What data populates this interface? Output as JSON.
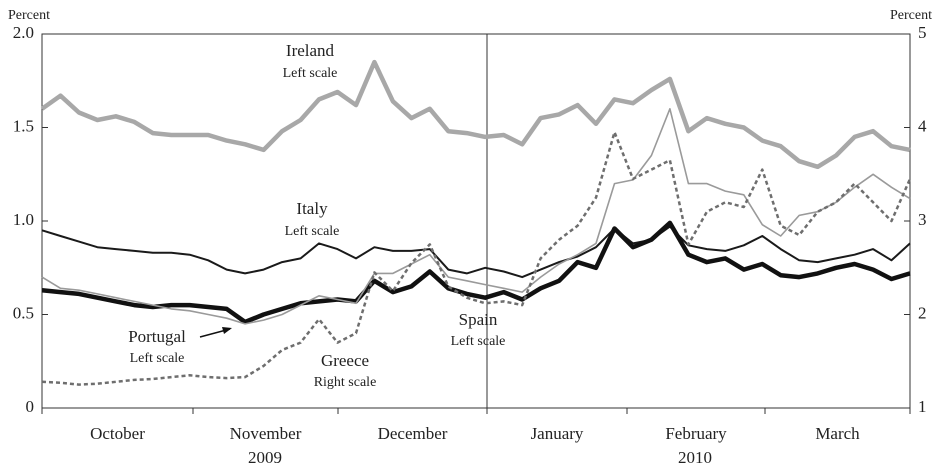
{
  "chart_data": {
    "type": "line",
    "y_label": "Percent",
    "y2_label": "Percent",
    "months": [
      "October",
      "November",
      "December",
      "January",
      "February",
      "March"
    ],
    "years": [
      "2009",
      "2010"
    ],
    "ylim": [
      0,
      2.0
    ],
    "yticks": [
      0,
      0.5,
      {
        "value": 1.0,
        "label": "1.0"
      },
      1.5,
      {
        "value": 2.0,
        "label": "2.0"
      }
    ],
    "y2lim": [
      1,
      5
    ],
    "y2ticks": [
      1,
      2,
      3,
      4,
      5
    ],
    "grid": false,
    "annotations": [
      "Ireland",
      "Left scale",
      "Italy",
      "Left scale",
      "Portugal",
      "Left scale",
      "Greece",
      "Right scale",
      "Spain",
      "Left scale"
    ],
    "series": [
      {
        "name": "Ireland",
        "color": "#a8a8a8",
        "values": [
          1.6,
          1.67,
          1.58,
          1.54,
          1.56,
          1.53,
          1.47,
          1.46,
          1.46,
          1.46,
          1.43,
          1.41,
          1.38,
          1.48,
          1.54,
          1.65,
          1.69,
          1.62,
          1.85,
          1.64,
          1.55,
          1.6,
          1.48,
          1.47,
          1.45,
          1.46,
          1.41,
          1.55,
          1.57,
          1.62,
          1.52,
          1.65,
          1.63,
          1.7,
          1.76,
          1.48,
          1.55,
          1.52,
          1.5,
          1.43,
          1.4,
          1.32,
          1.29,
          1.35,
          1.45,
          1.48,
          1.4,
          1.38
        ]
      },
      {
        "name": "Italy",
        "color": "#1a1a1a",
        "values": [
          0.95,
          0.92,
          0.89,
          0.86,
          0.85,
          0.84,
          0.83,
          0.83,
          0.82,
          0.79,
          0.74,
          0.72,
          0.74,
          0.78,
          0.8,
          0.88,
          0.85,
          0.8,
          0.86,
          0.84,
          0.84,
          0.85,
          0.74,
          0.72,
          0.75,
          0.73,
          0.7,
          0.74,
          0.78,
          0.81,
          0.86,
          0.96,
          0.88,
          0.9,
          0.97,
          0.87,
          0.85,
          0.84,
          0.87,
          0.92,
          0.85,
          0.79,
          0.78,
          0.8,
          0.82,
          0.85,
          0.79,
          0.88
        ]
      },
      {
        "name": "Portugal",
        "color": "#111111",
        "values": [
          0.63,
          0.62,
          0.61,
          0.59,
          0.57,
          0.55,
          0.54,
          0.55,
          0.55,
          0.54,
          0.53,
          0.46,
          0.5,
          0.53,
          0.56,
          0.57,
          0.58,
          0.57,
          0.68,
          0.62,
          0.65,
          0.73,
          0.64,
          0.61,
          0.59,
          0.62,
          0.58,
          0.64,
          0.68,
          0.78,
          0.75,
          0.96,
          0.86,
          0.9,
          0.99,
          0.82,
          0.78,
          0.8,
          0.74,
          0.77,
          0.71,
          0.7,
          0.72,
          0.75,
          0.77,
          0.74,
          0.69,
          0.72
        ]
      },
      {
        "name": "Spain",
        "color": "#9a9a9a",
        "values": [
          0.7,
          0.64,
          0.63,
          0.61,
          0.59,
          0.57,
          0.55,
          0.53,
          0.52,
          0.5,
          0.48,
          0.45,
          0.47,
          0.5,
          0.55,
          0.6,
          0.58,
          0.56,
          0.72,
          0.72,
          0.77,
          0.82,
          0.7,
          0.68,
          0.66,
          0.64,
          0.62,
          0.7,
          0.77,
          0.82,
          0.88,
          1.2,
          1.22,
          1.35,
          1.6,
          1.2,
          1.2,
          1.16,
          1.14,
          0.98,
          0.92,
          1.03,
          1.05,
          1.1,
          1.18,
          1.25,
          1.18,
          1.12
        ]
      },
      {
        "name": "Greece",
        "color": "#6e6e6e",
        "axis": "y2",
        "values": [
          1.28,
          1.27,
          1.25,
          1.26,
          1.28,
          1.3,
          1.31,
          1.33,
          1.35,
          1.33,
          1.32,
          1.33,
          1.45,
          1.62,
          1.7,
          1.95,
          1.7,
          1.8,
          2.45,
          2.25,
          2.55,
          2.75,
          2.3,
          2.18,
          2.12,
          2.14,
          2.1,
          2.6,
          2.8,
          2.95,
          3.25,
          3.95,
          3.45,
          3.55,
          3.65,
          2.75,
          3.1,
          3.2,
          3.15,
          3.55,
          2.95,
          2.85,
          3.1,
          3.2,
          3.4,
          3.2,
          3.0,
          3.45
        ]
      }
    ]
  }
}
